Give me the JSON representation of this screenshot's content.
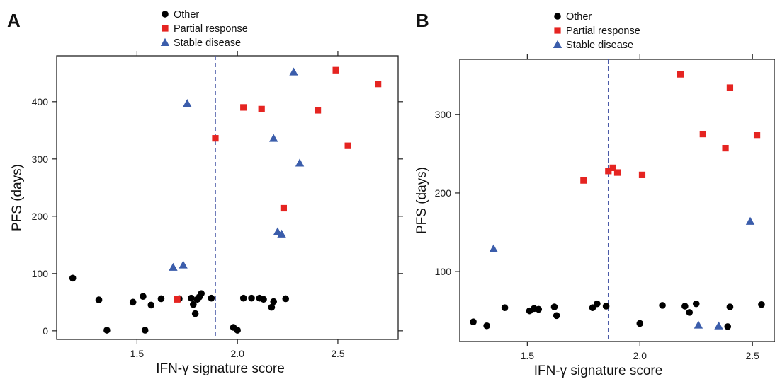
{
  "chart_data": [
    {
      "panel_label": "A",
      "type": "scatter",
      "xlabel": "IFN-γ signature score",
      "ylabel": "PFS (days)",
      "xlim": [
        1.1,
        2.8
      ],
      "ylim": [
        -15,
        480
      ],
      "xticks": [
        "1.5",
        "2.0",
        "2.5"
      ],
      "yticks": [
        "0",
        "100",
        "200",
        "300",
        "400"
      ],
      "cutoff_x": 1.89,
      "legend": [
        "Other",
        "Partial response",
        "Stable disease"
      ],
      "legend_position": "top-center",
      "series": [
        {
          "name": "Other",
          "color": "#000000",
          "marker": "circle",
          "points": [
            [
              1.18,
              92
            ],
            [
              1.31,
              54
            ],
            [
              1.35,
              1
            ],
            [
              1.48,
              50
            ],
            [
              1.53,
              60
            ],
            [
              1.54,
              1
            ],
            [
              1.57,
              45
            ],
            [
              1.62,
              56
            ],
            [
              1.71,
              56
            ],
            [
              1.77,
              57
            ],
            [
              1.78,
              46
            ],
            [
              1.79,
              30
            ],
            [
              1.8,
              55
            ],
            [
              1.81,
              59
            ],
            [
              1.82,
              65
            ],
            [
              1.87,
              57
            ],
            [
              1.98,
              6
            ],
            [
              2.0,
              1
            ],
            [
              2.03,
              57
            ],
            [
              2.07,
              57
            ],
            [
              2.11,
              57
            ],
            [
              2.13,
              55
            ],
            [
              2.17,
              41
            ],
            [
              2.18,
              51
            ],
            [
              2.24,
              56
            ]
          ]
        },
        {
          "name": "Partial response",
          "color": "#e52421",
          "marker": "square",
          "points": [
            [
              1.7,
              55
            ],
            [
              1.89,
              336
            ],
            [
              2.03,
              390
            ],
            [
              2.12,
              387
            ],
            [
              2.23,
              214
            ],
            [
              2.4,
              385
            ],
            [
              2.49,
              455
            ],
            [
              2.55,
              323
            ],
            [
              2.7,
              431
            ]
          ]
        },
        {
          "name": "Stable disease",
          "color": "#3b5dab",
          "marker": "triangle",
          "points": [
            [
              1.68,
              111
            ],
            [
              1.73,
              115
            ],
            [
              1.75,
              397
            ],
            [
              2.18,
              336
            ],
            [
              2.2,
              173
            ],
            [
              2.22,
              169
            ],
            [
              2.28,
              452
            ],
            [
              2.31,
              293
            ]
          ]
        }
      ]
    },
    {
      "panel_label": "B",
      "type": "scatter",
      "xlabel": "IFN-γ signature score",
      "ylabel": "PFS (days)",
      "xlim": [
        1.2,
        2.6
      ],
      "ylim": [
        11,
        370
      ],
      "xticks": [
        "1.5",
        "2.0",
        "2.5"
      ],
      "yticks": [
        "100",
        "200",
        "300"
      ],
      "cutoff_x": 1.86,
      "legend": [
        "Other",
        "Partial response",
        "Stable disease"
      ],
      "legend_position": "top-center",
      "series": [
        {
          "name": "Other",
          "color": "#000000",
          "marker": "circle",
          "points": [
            [
              1.26,
              36
            ],
            [
              1.32,
              31
            ],
            [
              1.4,
              54
            ],
            [
              1.51,
              50
            ],
            [
              1.53,
              53
            ],
            [
              1.55,
              52
            ],
            [
              1.62,
              55
            ],
            [
              1.63,
              44
            ],
            [
              1.79,
              54
            ],
            [
              1.81,
              59
            ],
            [
              1.85,
              56
            ],
            [
              2.0,
              34
            ],
            [
              2.1,
              57
            ],
            [
              2.2,
              56
            ],
            [
              2.22,
              48
            ],
            [
              2.25,
              59
            ],
            [
              2.39,
              30
            ],
            [
              2.4,
              55
            ],
            [
              2.54,
              58
            ]
          ]
        },
        {
          "name": "Partial response",
          "color": "#e52421",
          "marker": "square",
          "points": [
            [
              1.75,
              216
            ],
            [
              1.86,
              228
            ],
            [
              1.88,
              232
            ],
            [
              1.9,
              226
            ],
            [
              2.01,
              223
            ],
            [
              2.18,
              351
            ],
            [
              2.28,
              275
            ],
            [
              2.38,
              257
            ],
            [
              2.4,
              334
            ],
            [
              2.52,
              274
            ]
          ]
        },
        {
          "name": "Stable disease",
          "color": "#3b5dab",
          "marker": "triangle",
          "points": [
            [
              1.35,
              129
            ],
            [
              2.26,
              32
            ],
            [
              2.35,
              31
            ],
            [
              2.49,
              164
            ]
          ]
        }
      ]
    }
  ]
}
